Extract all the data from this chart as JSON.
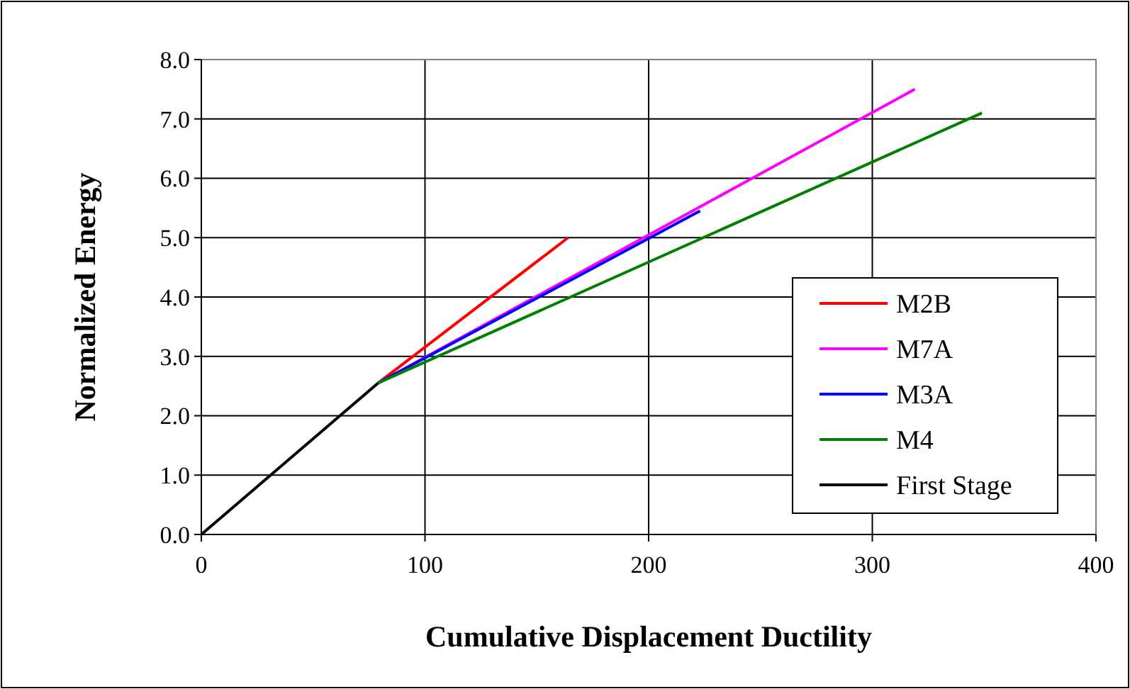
{
  "chart_data": {
    "type": "line",
    "xlabel": "Cumulative Displacement Ductility",
    "ylabel": "Normalized Energy",
    "xlim": [
      0,
      400
    ],
    "xticks": [
      0,
      100,
      200,
      300,
      400
    ],
    "ylim": [
      0,
      8
    ],
    "yticks": [
      {
        "value": 0,
        "label": "0.0"
      },
      {
        "value": 1,
        "label": "1.0"
      },
      {
        "value": 2,
        "label": "2.0"
      },
      {
        "value": 3,
        "label": "3.0"
      },
      {
        "value": 4,
        "label": "4.0"
      },
      {
        "value": 5,
        "label": "5.0"
      },
      {
        "value": 6,
        "label": "6.0"
      },
      {
        "value": 7,
        "label": "7.0"
      },
      {
        "value": 8,
        "label": "8.0"
      }
    ],
    "grid": true,
    "legend": "right",
    "marker": "none",
    "line_style": "solid",
    "series": [
      {
        "name": "M2B",
        "color": "#ff0000",
        "x": [
          79,
          164
        ],
        "values": [
          2.55,
          5.0
        ]
      },
      {
        "name": "M7A",
        "color": "#ff00ff",
        "x": [
          79,
          319
        ],
        "values": [
          2.55,
          7.5
        ]
      },
      {
        "name": "M3A",
        "color": "#0000ff",
        "x": [
          79,
          223
        ],
        "values": [
          2.55,
          5.45
        ]
      },
      {
        "name": "M4",
        "color": "#008000",
        "x": [
          79,
          349
        ],
        "values": [
          2.55,
          7.1
        ]
      },
      {
        "name": "First Stage",
        "color": "#000000",
        "x": [
          0,
          79
        ],
        "values": [
          0,
          2.55
        ]
      }
    ]
  }
}
